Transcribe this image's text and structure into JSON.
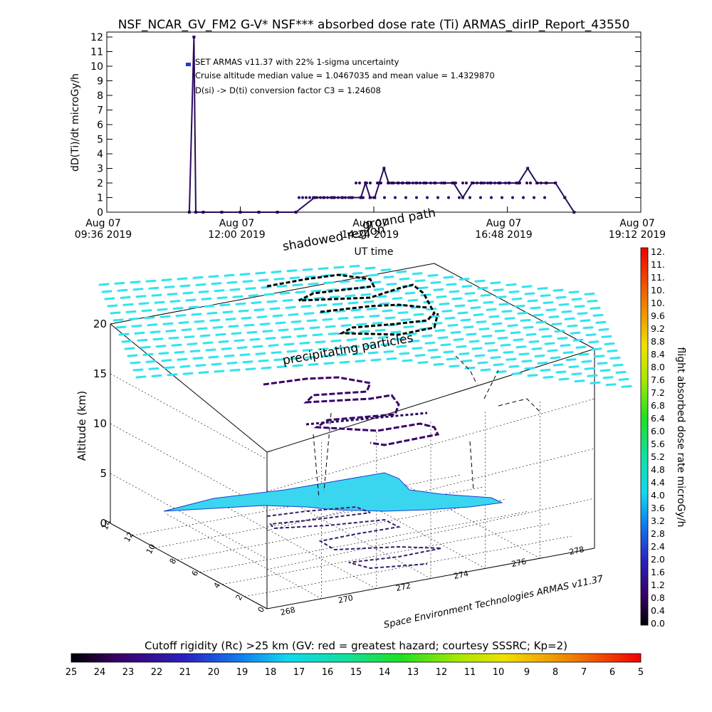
{
  "figure": {
    "title": "NSF_NCAR_GV_FM2 G-V* NSF*** absorbed dose rate (Ti) ARMAS_dirIP_Report_43550",
    "credit": "Space Environment Technologies ARMAS v11.37"
  },
  "annotations": {
    "line1": "SET ARMAS v11.37 with 22% 1-sigma uncertainty",
    "line2": "Cruise altitude median value = 1.0467035 and mean value = 1.4329870",
    "line3": "D(si) -> D(ti) conversion factor C3 = 1.24608",
    "shadowed_region": "shadowed region",
    "ground_path": "ground path",
    "precipitating": "precipitating particles"
  },
  "colors": {
    "series": "#2a0a5c",
    "flight_marker": "#1a3fd0",
    "coast": "#3ad6f0",
    "field": "#2fe4ee"
  },
  "chart_data": [
    {
      "type": "line",
      "title": "NSF_NCAR_GV_FM2 G-V* NSF*** absorbed dose rate (Ti) ARMAS_dirIP_Report_43550",
      "xlabel": "UT time",
      "ylabel": "dD(Ti)/dt microGy/h",
      "ylim": [
        0,
        12
      ],
      "yticks": [
        "0",
        "1",
        "2",
        "3",
        "4",
        "5",
        "6",
        "7",
        "8",
        "9",
        "10",
        "11",
        "12"
      ],
      "xticks": [
        {
          "l1": "Aug 07",
          "l2": "09:36 2019"
        },
        {
          "l1": "Aug 07",
          "l2": "12:00 2019"
        },
        {
          "l1": "Aug 07",
          "l2": "14:24 2019"
        },
        {
          "l1": "Aug 07",
          "l2": "16:48 2019"
        },
        {
          "l1": "Aug 07",
          "l2": "19:12 2019"
        }
      ],
      "xlim": [
        "2019-08-07 09:36",
        "2019-08-07 19:12"
      ],
      "series": [
        {
          "x": [
            "2019-08-07 11:05",
            "2019-08-07 11:10",
            "2019-08-07 11:12",
            "2019-08-07 11:20",
            "2019-08-07 11:40",
            "2019-08-07 12:00",
            "2019-08-07 12:20",
            "2019-08-07 12:40",
            "2019-08-07 13:00",
            "2019-08-07 13:20",
            "2019-08-07 13:30",
            "2019-08-07 13:40",
            "2019-08-07 13:50",
            "2019-08-07 14:00",
            "2019-08-07 14:10",
            "2019-08-07 14:15",
            "2019-08-07 14:20",
            "2019-08-07 14:25",
            "2019-08-07 14:30",
            "2019-08-07 14:35",
            "2019-08-07 14:40",
            "2019-08-07 14:45",
            "2019-08-07 14:50",
            "2019-08-07 14:55",
            "2019-08-07 15:00",
            "2019-08-07 15:10",
            "2019-08-07 15:20",
            "2019-08-07 15:30",
            "2019-08-07 15:40",
            "2019-08-07 15:50",
            "2019-08-07 16:00",
            "2019-08-07 16:10",
            "2019-08-07 16:20",
            "2019-08-07 16:30",
            "2019-08-07 16:40",
            "2019-08-07 16:50",
            "2019-08-07 17:00",
            "2019-08-07 17:10",
            "2019-08-07 17:20",
            "2019-08-07 17:30",
            "2019-08-07 17:40",
            "2019-08-07 17:50",
            "2019-08-07 18:00"
          ],
          "values": [
            0,
            12,
            0,
            0,
            0,
            0,
            0,
            0,
            0,
            1,
            1,
            1,
            1,
            1,
            1,
            2,
            1,
            1,
            2,
            3,
            2,
            2,
            2,
            2,
            2,
            2,
            2,
            2,
            2,
            2,
            1,
            2,
            2,
            2,
            2,
            2,
            2,
            3,
            2,
            2,
            2,
            1,
            0
          ]
        }
      ],
      "legend": "none",
      "grid": false
    },
    {
      "type": "scatter",
      "title": "",
      "zlabel": "Altitude (km)",
      "zlim": [
        0,
        20
      ],
      "zticks": [
        "0",
        "5",
        "10",
        "15",
        "20"
      ],
      "x_axis_ticks": [
        "268",
        "270",
        "272",
        "274",
        "276",
        "278"
      ],
      "y_axis_ticks": [
        "0",
        "2",
        "4",
        "6",
        "8",
        "10",
        "12",
        "14"
      ],
      "grid": true
    },
    {
      "type": "heatmap",
      "colorbar": "right",
      "label": "flight absorbed dose rate microGy/h",
      "ticks": [
        "0.0",
        "0.4",
        "0.8",
        "1.2",
        "1.6",
        "2.0",
        "2.4",
        "2.8",
        "3.2",
        "3.6",
        "4.0",
        "4.4",
        "4.8",
        "5.2",
        "5.6",
        "6.0",
        "6.4",
        "6.8",
        "7.2",
        "7.6",
        "8.0",
        "8.4",
        "8.8",
        "9.2",
        "9.6",
        "10.",
        "10.",
        "11.",
        "11.",
        "12."
      ]
    },
    {
      "type": "heatmap",
      "colorbar": "bottom",
      "label": "Cutoff rigidity (Rc) >25 km (GV: red = greatest hazard; courtesy SSSRC; Kp=2)",
      "ticks": [
        "25",
        "24",
        "23",
        "22",
        "21",
        "20",
        "19",
        "18",
        "17",
        "16",
        "15",
        "14",
        "13",
        "12",
        "11",
        "10",
        "9",
        "8",
        "7",
        "6",
        "5"
      ]
    }
  ]
}
